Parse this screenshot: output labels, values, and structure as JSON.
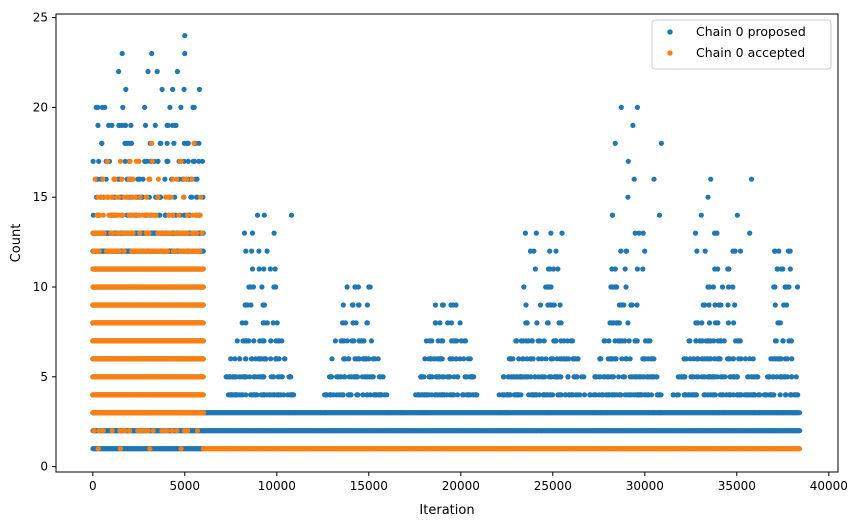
{
  "chart_data": {
    "type": "scatter",
    "xlabel": "Iteration",
    "ylabel": "Count",
    "xlim": [
      -2000,
      40500
    ],
    "ylim": [
      -0.3,
      25.2
    ],
    "x_ticks": [
      0,
      5000,
      10000,
      15000,
      20000,
      25000,
      30000,
      35000,
      40000
    ],
    "y_ticks": [
      0,
      5,
      10,
      15,
      20,
      25
    ],
    "grid": false,
    "legend_position": "top-right",
    "colors": {
      "proposed": "#1f77b4",
      "accepted": "#ff7f0e"
    },
    "series": [
      {
        "name": "Chain 0 proposed",
        "color": "#1f77b4",
        "bands": [
          {
            "x_start": 0,
            "x_end": 6000,
            "y_min": 1,
            "y_max": 13
          },
          {
            "x_start": 6000,
            "x_end": 38400,
            "y_min": 2,
            "y_max": 2
          },
          {
            "x_start": 6000,
            "x_end": 38400,
            "y_min": 3,
            "y_max": 3
          }
        ],
        "clusters": [
          {
            "x_start": 7000,
            "x_end": 11000,
            "peak": 14
          },
          {
            "x_start": 12500,
            "x_end": 16000,
            "peak": 10
          },
          {
            "x_start": 17500,
            "x_end": 21000,
            "peak": 9
          },
          {
            "x_start": 22000,
            "x_end": 27000,
            "peak": 13
          },
          {
            "x_start": 27000,
            "x_end": 31000,
            "peak": 20
          },
          {
            "x_start": 31500,
            "x_end": 36500,
            "peak": 16
          },
          {
            "x_start": 36500,
            "x_end": 38400,
            "peak": 12
          }
        ],
        "notable_points": [
          {
            "x": 5000,
            "y": 24
          },
          {
            "x": 1600,
            "y": 23
          },
          {
            "x": 3200,
            "y": 23
          },
          {
            "x": 5000,
            "y": 23
          },
          {
            "x": 1400,
            "y": 22
          },
          {
            "x": 3000,
            "y": 22
          },
          {
            "x": 3500,
            "y": 22
          },
          {
            "x": 4600,
            "y": 22
          },
          {
            "x": 29600,
            "y": 20
          },
          {
            "x": 30900,
            "y": 18
          },
          {
            "x": 30500,
            "y": 16
          },
          {
            "x": 35800,
            "y": 16
          },
          {
            "x": 10800,
            "y": 14
          },
          {
            "x": 30800,
            "y": 14
          },
          {
            "x": 25500,
            "y": 13
          },
          {
            "x": 35700,
            "y": 13
          },
          {
            "x": 37900,
            "y": 12
          },
          {
            "x": 38300,
            "y": 10
          },
          {
            "x": 35200,
            "y": 12
          }
        ]
      },
      {
        "name": "Chain 0 accepted",
        "color": "#ff7f0e",
        "bands": [
          {
            "x_start": 0,
            "x_end": 6000,
            "y_min": 3,
            "y_max": 11
          },
          {
            "x_start": 6000,
            "x_end": 38400,
            "y_min": 1,
            "y_max": 1
          }
        ],
        "notable_points": [
          {
            "x": 5500,
            "y": 18
          },
          {
            "x": 3200,
            "y": 18
          },
          {
            "x": 1500,
            "y": 17
          },
          {
            "x": 4800,
            "y": 17
          },
          {
            "x": 1200,
            "y": 16
          },
          {
            "x": 3100,
            "y": 16
          },
          {
            "x": 5100,
            "y": 16
          },
          {
            "x": 300,
            "y": 1
          },
          {
            "x": 1500,
            "y": 1
          },
          {
            "x": 3100,
            "y": 1
          },
          {
            "x": 4800,
            "y": 1
          }
        ]
      }
    ]
  }
}
